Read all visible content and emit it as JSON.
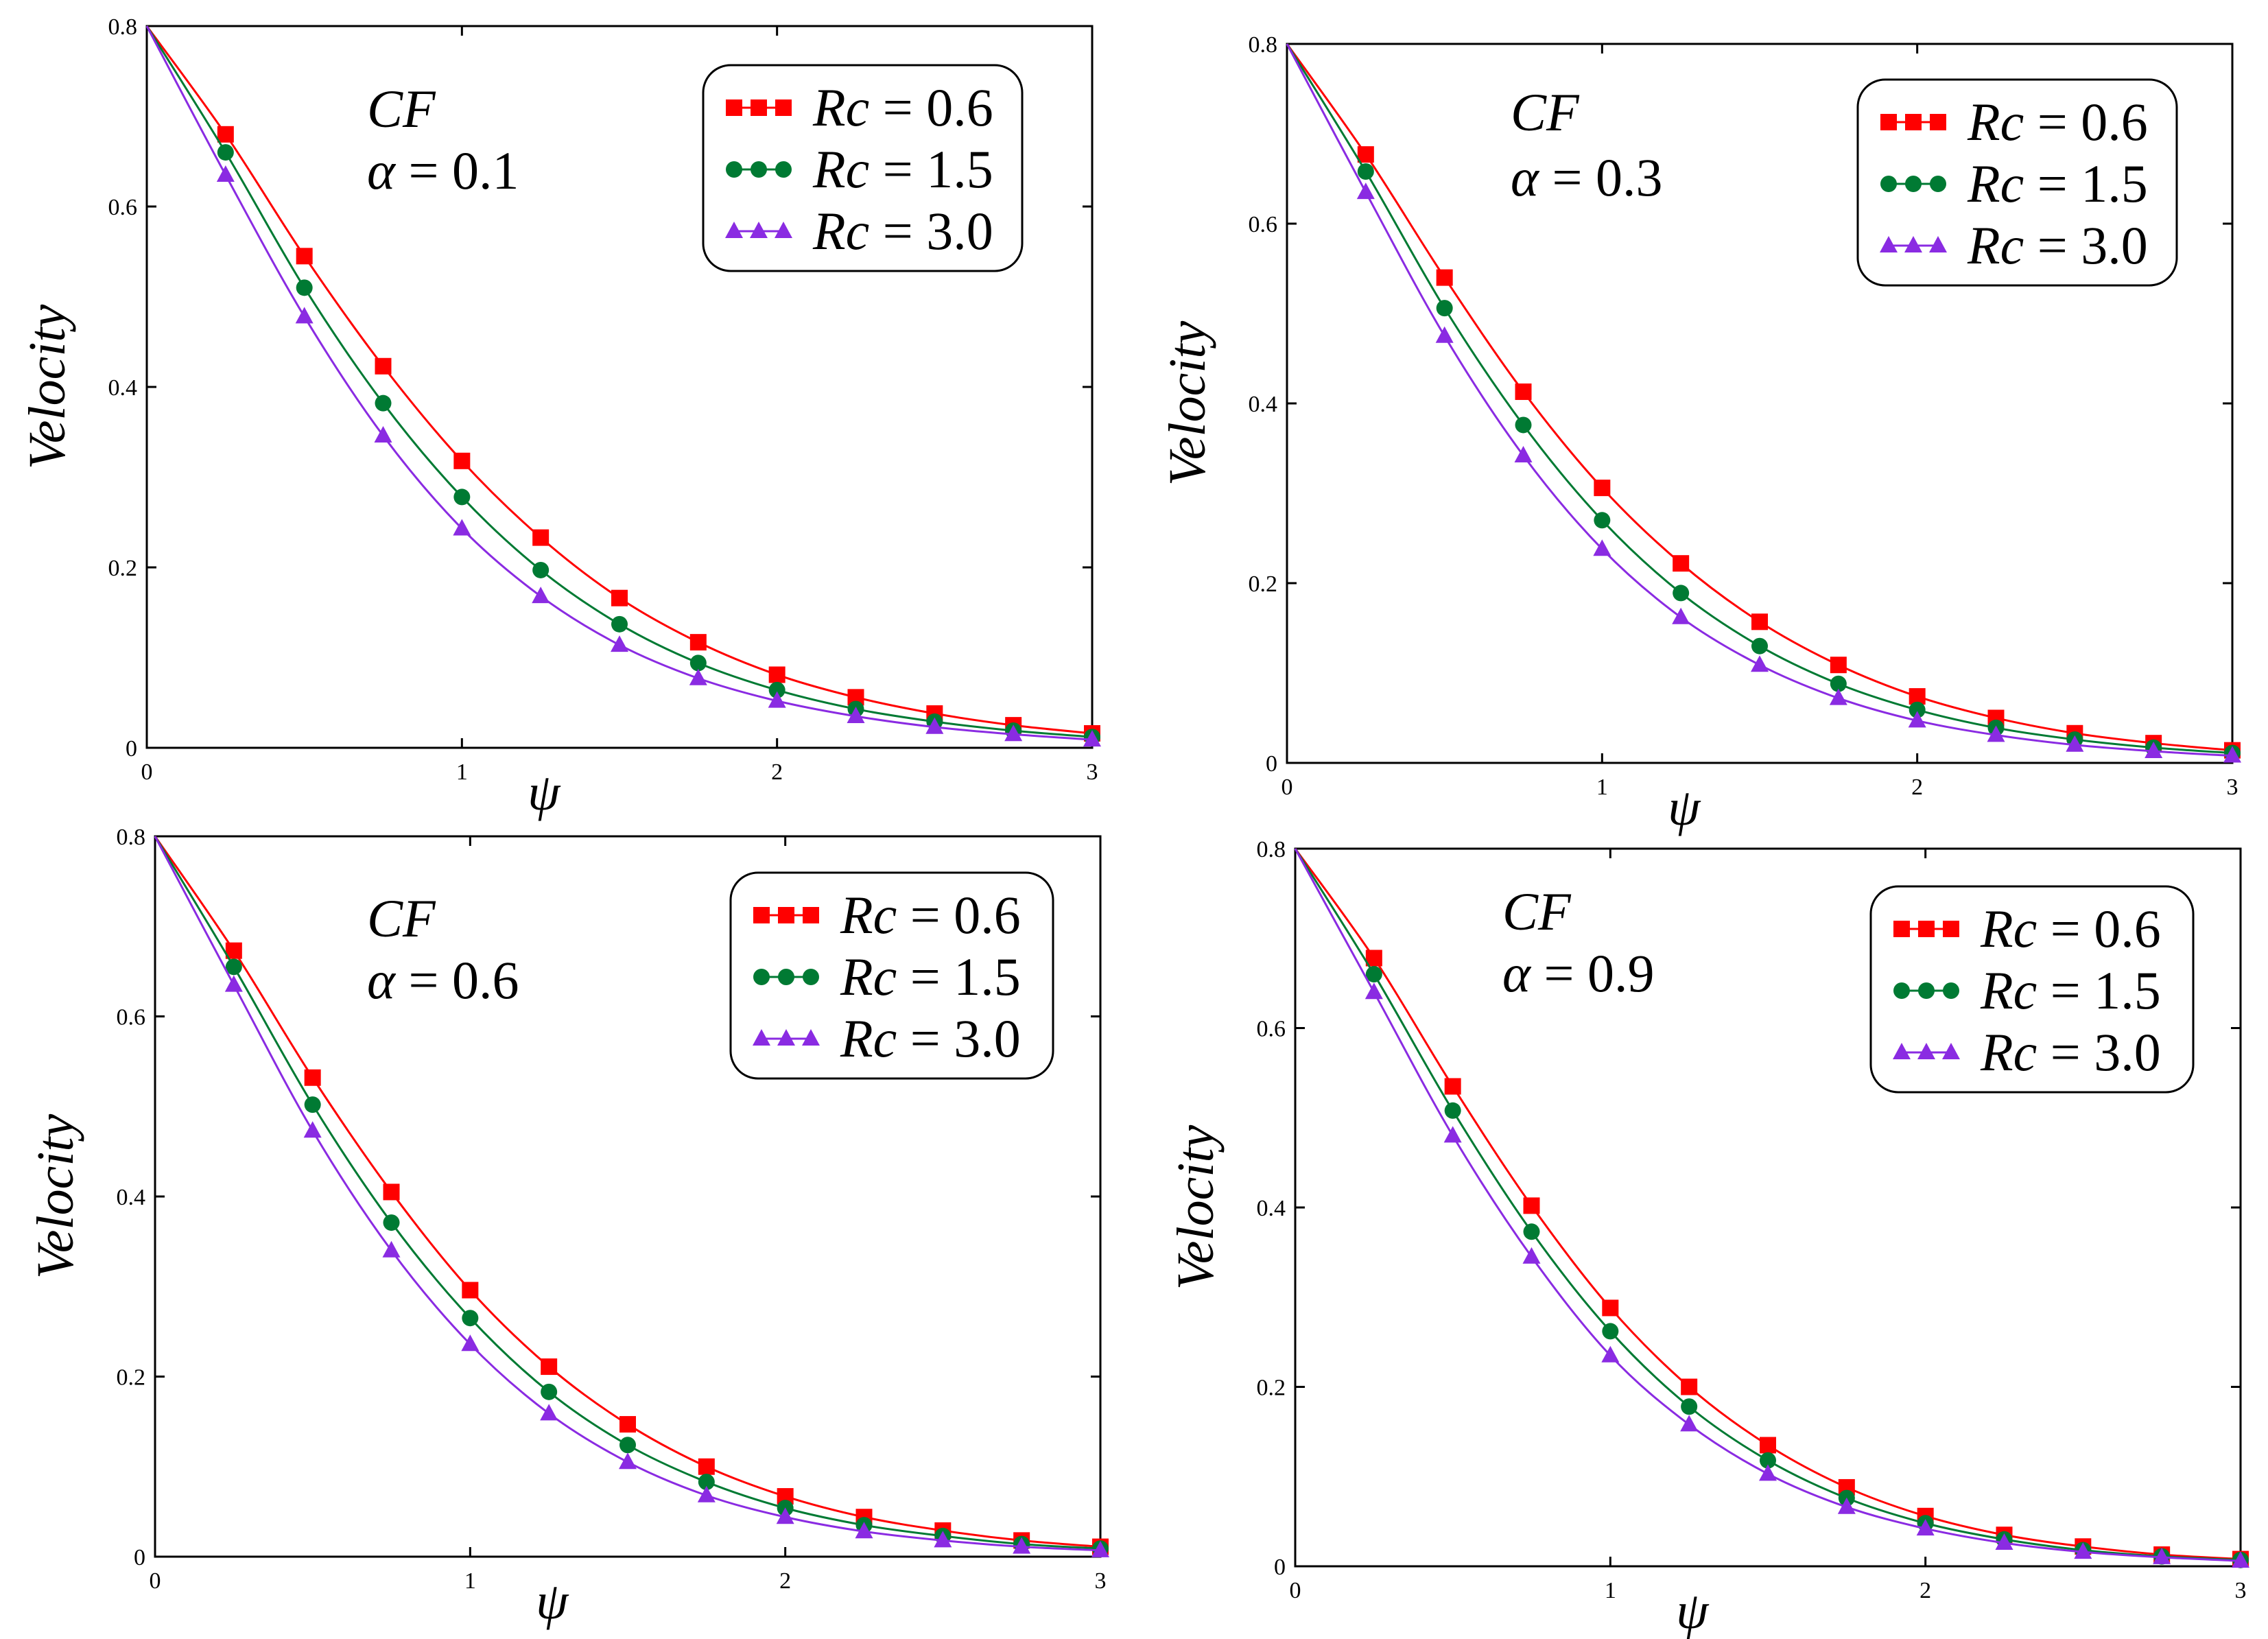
{
  "chart_data": [
    {
      "type": "line",
      "xlabel": "ψ",
      "ylabel": "Velocity",
      "xlim": [
        0,
        3
      ],
      "ylim": [
        0,
        0.8
      ],
      "x_ticks": [
        "0",
        "1",
        "2",
        "3"
      ],
      "y_ticks": [
        "0",
        "0.2",
        "0.4",
        "0.6",
        "0.8"
      ],
      "annotation": {
        "line1": "CF",
        "line2_symbol": "α",
        "line2_value": "0.1"
      },
      "legend_position": "top-right",
      "x": [
        0,
        0.25,
        0.5,
        0.75,
        1.0,
        1.25,
        1.5,
        1.75,
        2.0,
        2.25,
        2.5,
        2.75,
        3.0
      ],
      "series": [
        {
          "name": "Rc = 0.6",
          "symbol": "Rc",
          "value": "0.6",
          "marker": "square",
          "color": "#ff0000",
          "values": [
            0.8,
            0.68,
            0.545,
            0.423,
            0.318,
            0.233,
            0.166,
            0.117,
            0.081,
            0.056,
            0.038,
            0.025,
            0.016
          ]
        },
        {
          "name": "Rc = 1.5",
          "symbol": "Rc",
          "value": "1.5",
          "marker": "circle",
          "color": "#007a33",
          "values": [
            0.8,
            0.66,
            0.51,
            0.382,
            0.278,
            0.197,
            0.137,
            0.094,
            0.064,
            0.043,
            0.029,
            0.019,
            0.012
          ]
        },
        {
          "name": "Rc = 3.0",
          "symbol": "Rc",
          "value": "3.0",
          "marker": "triangle",
          "color": "#8a2be2",
          "values": [
            0.8,
            0.635,
            0.478,
            0.346,
            0.243,
            0.168,
            0.114,
            0.077,
            0.052,
            0.035,
            0.023,
            0.015,
            0.009
          ]
        }
      ]
    },
    {
      "type": "line",
      "xlabel": "ψ",
      "ylabel": "Velocity",
      "xlim": [
        0,
        3
      ],
      "ylim": [
        0,
        0.8
      ],
      "x_ticks": [
        "0",
        "1",
        "2",
        "3"
      ],
      "y_ticks": [
        "0",
        "0.2",
        "0.4",
        "0.6",
        "0.8"
      ],
      "annotation": {
        "line1": "CF",
        "line2_symbol": "α",
        "line2_value": "0.3"
      },
      "legend_position": "top-right",
      "x": [
        0,
        0.25,
        0.5,
        0.75,
        1.0,
        1.25,
        1.5,
        1.75,
        2.0,
        2.25,
        2.5,
        2.75,
        3.0
      ],
      "series": [
        {
          "name": "Rc = 0.6",
          "symbol": "Rc",
          "value": "0.6",
          "marker": "square",
          "color": "#ff0000",
          "values": [
            0.8,
            0.677,
            0.54,
            0.413,
            0.306,
            0.222,
            0.157,
            0.109,
            0.074,
            0.05,
            0.033,
            0.022,
            0.014
          ]
        },
        {
          "name": "Rc = 1.5",
          "symbol": "Rc",
          "value": "1.5",
          "marker": "circle",
          "color": "#007a33",
          "values": [
            0.8,
            0.658,
            0.506,
            0.376,
            0.27,
            0.189,
            0.13,
            0.088,
            0.059,
            0.039,
            0.026,
            0.017,
            0.011
          ]
        },
        {
          "name": "Rc = 3.0",
          "symbol": "Rc",
          "value": "3.0",
          "marker": "triangle",
          "color": "#8a2be2",
          "values": [
            0.8,
            0.635,
            0.475,
            0.342,
            0.238,
            0.162,
            0.109,
            0.072,
            0.047,
            0.031,
            0.02,
            0.013,
            0.008
          ]
        }
      ]
    },
    {
      "type": "line",
      "xlabel": "ψ",
      "ylabel": "Velocity",
      "xlim": [
        0,
        3
      ],
      "ylim": [
        0,
        0.8
      ],
      "x_ticks": [
        "0",
        "1",
        "2",
        "3"
      ],
      "y_ticks": [
        "0",
        "0.2",
        "0.4",
        "0.6",
        "0.8"
      ],
      "annotation": {
        "line1": "CF",
        "line2_symbol": "α",
        "line2_value": "0.6"
      },
      "legend_position": "top-right",
      "x": [
        0,
        0.25,
        0.5,
        0.75,
        1.0,
        1.25,
        1.5,
        1.75,
        2.0,
        2.25,
        2.5,
        2.75,
        3.0
      ],
      "series": [
        {
          "name": "Rc = 0.6",
          "symbol": "Rc",
          "value": "0.6",
          "marker": "square",
          "color": "#ff0000",
          "values": [
            0.8,
            0.673,
            0.532,
            0.405,
            0.296,
            0.211,
            0.147,
            0.1,
            0.067,
            0.044,
            0.029,
            0.018,
            0.011
          ]
        },
        {
          "name": "Rc = 1.5",
          "symbol": "Rc",
          "value": "1.5",
          "marker": "circle",
          "color": "#007a33",
          "values": [
            0.8,
            0.655,
            0.502,
            0.371,
            0.265,
            0.183,
            0.124,
            0.083,
            0.054,
            0.035,
            0.023,
            0.014,
            0.009
          ]
        },
        {
          "name": "Rc = 3.0",
          "symbol": "Rc",
          "value": "3.0",
          "marker": "triangle",
          "color": "#8a2be2",
          "values": [
            0.8,
            0.635,
            0.473,
            0.34,
            0.236,
            0.159,
            0.105,
            0.068,
            0.044,
            0.028,
            0.018,
            0.011,
            0.007
          ]
        }
      ]
    },
    {
      "type": "line",
      "xlabel": "ψ",
      "ylabel": "Velocity",
      "xlim": [
        0,
        3
      ],
      "ylim": [
        0,
        0.8
      ],
      "x_ticks": [
        "0",
        "1",
        "2",
        "3"
      ],
      "y_ticks": [
        "0",
        "0.2",
        "0.4",
        "0.6",
        "0.8"
      ],
      "annotation": {
        "line1": "CF",
        "line2_symbol": "α",
        "line2_value": "0.9"
      },
      "legend_position": "top-right",
      "x": [
        0,
        0.25,
        0.5,
        0.75,
        1.0,
        1.25,
        1.5,
        1.75,
        2.0,
        2.25,
        2.5,
        2.75,
        3.0
      ],
      "series": [
        {
          "name": "Rc = 0.6",
          "symbol": "Rc",
          "value": "0.6",
          "marker": "square",
          "color": "#ff0000",
          "values": [
            0.8,
            0.678,
            0.535,
            0.402,
            0.288,
            0.2,
            0.135,
            0.088,
            0.056,
            0.035,
            0.022,
            0.013,
            0.008
          ]
        },
        {
          "name": "Rc = 1.5",
          "symbol": "Rc",
          "value": "1.5",
          "marker": "circle",
          "color": "#007a33",
          "values": [
            0.8,
            0.66,
            0.508,
            0.373,
            0.262,
            0.178,
            0.118,
            0.076,
            0.048,
            0.03,
            0.018,
            0.011,
            0.007
          ]
        },
        {
          "name": "Rc = 3.0",
          "symbol": "Rc",
          "value": "3.0",
          "marker": "triangle",
          "color": "#8a2be2",
          "values": [
            0.8,
            0.64,
            0.48,
            0.345,
            0.235,
            0.158,
            0.103,
            0.066,
            0.042,
            0.026,
            0.016,
            0.01,
            0.006
          ]
        }
      ]
    }
  ]
}
